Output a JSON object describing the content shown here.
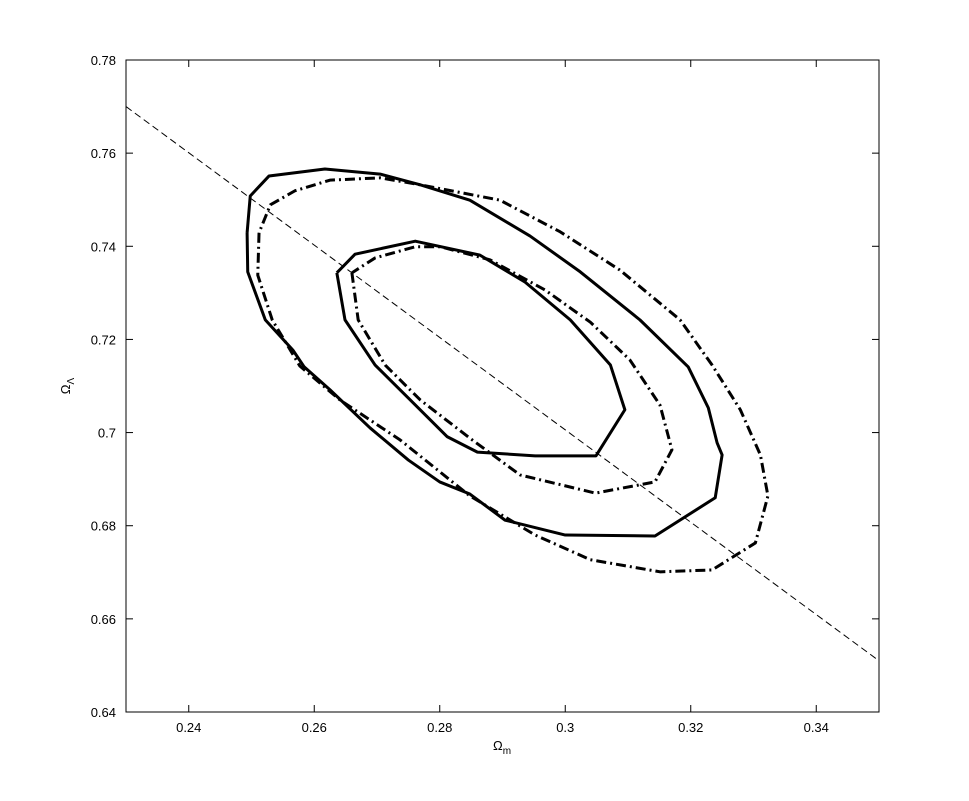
{
  "chart_data": {
    "type": "line",
    "xlabel": [
      "Ω",
      "m"
    ],
    "ylabel": [
      "Ω",
      "Λ"
    ],
    "xlim": [
      0.23,
      0.35
    ],
    "ylim": [
      0.64,
      0.78
    ],
    "xticks": [
      0.24,
      0.26,
      0.28,
      0.3,
      0.32,
      0.34
    ],
    "yticks": [
      0.64,
      0.66,
      0.68,
      0.7,
      0.72,
      0.74,
      0.76,
      0.78
    ],
    "series": [
      {
        "color": "#000000",
        "dash": "solid",
        "width": 3,
        "x": [
          0.2493,
          0.2494,
          0.2522,
          0.2566,
          0.2584,
          0.2625,
          0.2689,
          0.275,
          0.28,
          0.2848,
          0.2904,
          0.3,
          0.3143,
          0.3239,
          0.325,
          0.3242,
          0.3228,
          0.3196,
          0.3119,
          0.3024,
          0.2944,
          0.2848,
          0.2769,
          0.2705,
          0.2617,
          0.2528,
          0.2498,
          0.2493
        ],
        "y": [
          0.7429,
          0.7345,
          0.7242,
          0.7177,
          0.7141,
          0.7092,
          0.701,
          0.6941,
          0.6894,
          0.6868,
          0.6812,
          0.678,
          0.6778,
          0.686,
          0.6952,
          0.6978,
          0.7053,
          0.7141,
          0.7242,
          0.7345,
          0.7422,
          0.7499,
          0.7532,
          0.7555,
          0.7566,
          0.7551,
          0.7508,
          0.7429
        ]
      },
      {
        "color": "#000000",
        "dash": "solid",
        "width": 3,
        "x": [
          0.2636,
          0.2649,
          0.2697,
          0.2753,
          0.2812,
          0.286,
          0.2952,
          0.3049,
          0.3095,
          0.3072,
          0.3008,
          0.2936,
          0.2864,
          0.2761,
          0.2665,
          0.2636
        ],
        "y": [
          0.7343,
          0.7242,
          0.7145,
          0.707,
          0.6991,
          0.6958,
          0.695,
          0.695,
          0.7049,
          0.7145,
          0.7242,
          0.7323,
          0.7381,
          0.7411,
          0.7383,
          0.7343
        ]
      },
      {
        "color": "#000000",
        "dash": "dashdot",
        "width": 3,
        "x": [
          0.2512,
          0.251,
          0.2533,
          0.2577,
          0.2641,
          0.2737,
          0.2848,
          0.2952,
          0.304,
          0.3151,
          0.3234,
          0.3303,
          0.3323,
          0.3311,
          0.3279,
          0.3234,
          0.3183,
          0.3087,
          0.2992,
          0.2896,
          0.2769,
          0.2705,
          0.2625,
          0.2569,
          0.253,
          0.2512
        ],
        "y": [
          0.7429,
          0.7338,
          0.7242,
          0.7143,
          0.707,
          0.6984,
          0.6864,
          0.678,
          0.6727,
          0.6701,
          0.6705,
          0.6763,
          0.6864,
          0.6952,
          0.7049,
          0.7145,
          0.7242,
          0.7349,
          0.7431,
          0.7499,
          0.7532,
          0.7547,
          0.7542,
          0.7519,
          0.7489,
          0.7429
        ]
      },
      {
        "color": "#000000",
        "dash": "dashdot",
        "width": 3,
        "x": [
          0.266,
          0.267,
          0.2713,
          0.2769,
          0.2848,
          0.2928,
          0.3048,
          0.3143,
          0.317,
          0.3151,
          0.3103,
          0.304,
          0.2968,
          0.288,
          0.2801,
          0.2761,
          0.2697,
          0.266
        ],
        "y": [
          0.7343,
          0.7242,
          0.7145,
          0.707,
          0.6988,
          0.6909,
          0.687,
          0.6894,
          0.6963,
          0.7059,
          0.7156,
          0.7237,
          0.7306,
          0.7371,
          0.7399,
          0.7399,
          0.7375,
          0.7343
        ]
      },
      {
        "color": "#000000",
        "dash": "dashed",
        "width": 1,
        "x": [
          0.23,
          0.35
        ],
        "y": [
          0.77,
          0.651
        ]
      }
    ]
  }
}
